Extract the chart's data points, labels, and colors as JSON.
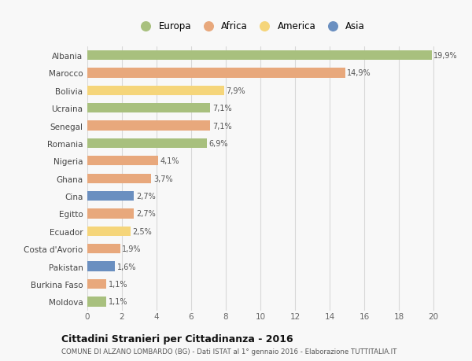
{
  "countries": [
    "Albania",
    "Marocco",
    "Bolivia",
    "Ucraina",
    "Senegal",
    "Romania",
    "Nigeria",
    "Ghana",
    "Cina",
    "Egitto",
    "Ecuador",
    "Costa d'Avorio",
    "Pakistan",
    "Burkina Faso",
    "Moldova"
  ],
  "values": [
    19.9,
    14.9,
    7.9,
    7.1,
    7.1,
    6.9,
    4.1,
    3.7,
    2.7,
    2.7,
    2.5,
    1.9,
    1.6,
    1.1,
    1.1
  ],
  "labels": [
    "19,9%",
    "14,9%",
    "7,9%",
    "7,1%",
    "7,1%",
    "6,9%",
    "4,1%",
    "3,7%",
    "2,7%",
    "2,7%",
    "2,5%",
    "1,9%",
    "1,6%",
    "1,1%",
    "1,1%"
  ],
  "continents": [
    "Europa",
    "Africa",
    "America",
    "Europa",
    "Africa",
    "Europa",
    "Africa",
    "Africa",
    "Asia",
    "Africa",
    "America",
    "Africa",
    "Asia",
    "Africa",
    "Europa"
  ],
  "colors": {
    "Europa": "#a8c07e",
    "Africa": "#e8a87c",
    "America": "#f5d57a",
    "Asia": "#6a8fc0"
  },
  "xlim": [
    0,
    21
  ],
  "xticks": [
    0,
    2,
    4,
    6,
    8,
    10,
    12,
    14,
    16,
    18,
    20
  ],
  "title": "Cittadini Stranieri per Cittadinanza - 2016",
  "subtitle": "COMUNE DI ALZANO LOMBARDO (BG) - Dati ISTAT al 1° gennaio 2016 - Elaborazione TUTTITALIA.IT",
  "background_color": "#f8f8f8",
  "grid_color": "#d8d8d8",
  "bar_height": 0.55
}
